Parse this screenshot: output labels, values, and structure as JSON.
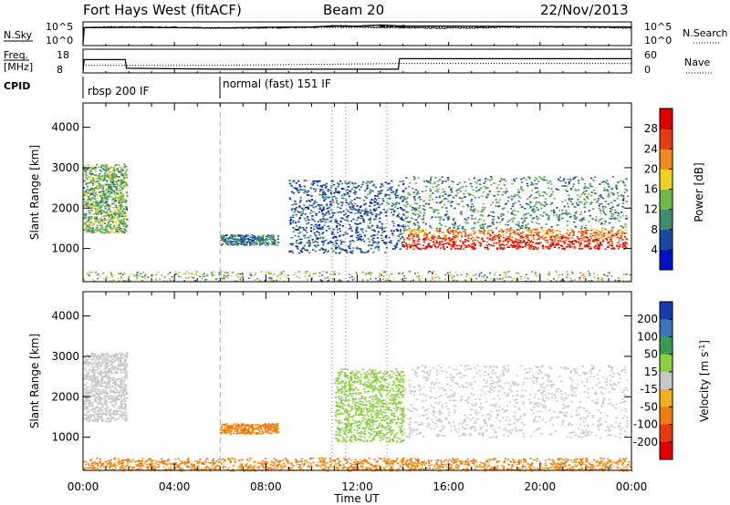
{
  "header": {
    "station": "Fort Hays West (fitACF)",
    "beam": "Beam 20",
    "date": "22/Nov/2013"
  },
  "top_panels": {
    "nsky_label": "N.Sky",
    "nsky_ticks": [
      "10^5",
      "10^0"
    ],
    "nsearch_label": "N.Search",
    "nsearch_ticks": [
      "10^5",
      "10^0"
    ],
    "freq_label": "Freq.",
    "freq_unit": "[MHz]",
    "freq_ticks": [
      "18",
      "8"
    ],
    "nave_label": "Nave",
    "nave_ticks": [
      "60",
      "0"
    ],
    "cpid_label": "CPID",
    "cpid_segments": [
      {
        "start_hour": 0,
        "label": "rbsp 200 IF"
      },
      {
        "start_hour": 6,
        "label": "normal (fast) 151 IF"
      }
    ]
  },
  "axes": {
    "xlabel": "Time UT",
    "xticks": [
      "00:00",
      "04:00",
      "08:00",
      "12:00",
      "16:00",
      "20:00",
      "00:00"
    ],
    "ylabel": "Slant Range [km]",
    "yticks": [
      "1000",
      "2000",
      "3000",
      "4000"
    ]
  },
  "power_colorbar": {
    "label": "Power [dB]",
    "ticks": [
      "4",
      "8",
      "12",
      "16",
      "20",
      "24",
      "28"
    ],
    "colors": [
      "#0010c8",
      "#1a4aa0",
      "#3f8c70",
      "#6fb84a",
      "#f0d020",
      "#f08a1a",
      "#e83a10",
      "#e00000"
    ]
  },
  "velocity_colorbar": {
    "label": "Velocity [m s",
    "label_sup": "-1",
    "label_end": "]",
    "ticks": [
      "200",
      "100",
      "50",
      "15",
      "-15",
      "-50",
      "-100",
      "-200"
    ],
    "colors": [
      "#1a3ab0",
      "#3b78b8",
      "#3a9a50",
      "#8ad040",
      "#c8c8c8",
      "#f0b020",
      "#f07a10",
      "#e83a10",
      "#e00000"
    ]
  },
  "chart_data": [
    {
      "type": "line",
      "title": "N.Sky / N.Search",
      "x_unit": "hours UT",
      "xlim": [
        0,
        24
      ],
      "series": [
        {
          "name": "N.Sky",
          "style": "solid",
          "x": [
            0,
            0.05,
            2,
            6,
            8,
            10,
            11,
            12,
            13,
            14,
            16,
            20,
            24
          ],
          "log10_value": [
            0,
            4.2,
            4.3,
            4.1,
            4.3,
            4.4,
            4.7,
            4.6,
            4.9,
            4.6,
            4.6,
            4.5,
            4.4
          ]
        },
        {
          "name": "N.Search",
          "style": "dotted",
          "x": [
            0,
            24
          ],
          "log10_value": [
            4.2,
            4.3
          ]
        }
      ]
    },
    {
      "type": "line",
      "title": "Freq. [MHz] / Nave",
      "xlim": [
        0,
        24
      ],
      "series": [
        {
          "name": "Freq.",
          "style": "solid",
          "x": [
            0,
            0.05,
            1.85,
            1.9,
            6,
            13.8,
            13.85,
            24
          ],
          "value": [
            8,
            14,
            14,
            9.5,
            9,
            9,
            14.5,
            14.5
          ]
        },
        {
          "name": "Nave",
          "style": "dotted",
          "x": [
            0,
            6,
            14,
            24
          ],
          "value": [
            18,
            18,
            24,
            24
          ]
        }
      ]
    },
    {
      "type": "heatmap",
      "title": "Power [dB]",
      "xlabel": "Time UT",
      "ylabel": "Slant Range [km]",
      "xlim": [
        0,
        24
      ],
      "ylim": [
        180,
        4600
      ],
      "zlim": [
        0,
        30
      ],
      "regions": [
        {
          "x": [
            0,
            1.9
          ],
          "y": [
            1400,
            3100
          ],
          "typical_db": 12
        },
        {
          "x": [
            6,
            8.5
          ],
          "y": [
            1100,
            1350
          ],
          "typical_db": 8
        },
        {
          "x": [
            9,
            14
          ],
          "y": [
            900,
            2700
          ],
          "typical_db": 6
        },
        {
          "x": [
            14,
            23.8
          ],
          "y": [
            1000,
            1500
          ],
          "typical_db": 26
        },
        {
          "x": [
            14,
            23.8
          ],
          "y": [
            1500,
            2800
          ],
          "typical_db": 10
        }
      ]
    },
    {
      "type": "heatmap",
      "title": "Velocity [m s-1]",
      "xlabel": "Time UT",
      "ylabel": "Slant Range [km]",
      "xlim": [
        0,
        24
      ],
      "ylim": [
        180,
        4600
      ],
      "zlim": [
        -200,
        200
      ],
      "regions": [
        {
          "x": [
            0,
            1.9
          ],
          "y": [
            1400,
            3100
          ],
          "typical_velocity": 0
        },
        {
          "x": [
            6,
            8.5
          ],
          "y": [
            1100,
            1350
          ],
          "typical_velocity": -60
        },
        {
          "x": [
            11,
            14
          ],
          "y": [
            900,
            2700
          ],
          "typical_velocity": 30
        },
        {
          "x": [
            14,
            23.8
          ],
          "y": [
            1000,
            2800
          ],
          "typical_velocity": 0
        },
        {
          "x": [
            0,
            24
          ],
          "y": [
            180,
            500
          ],
          "typical_velocity": -60
        }
      ]
    }
  ]
}
